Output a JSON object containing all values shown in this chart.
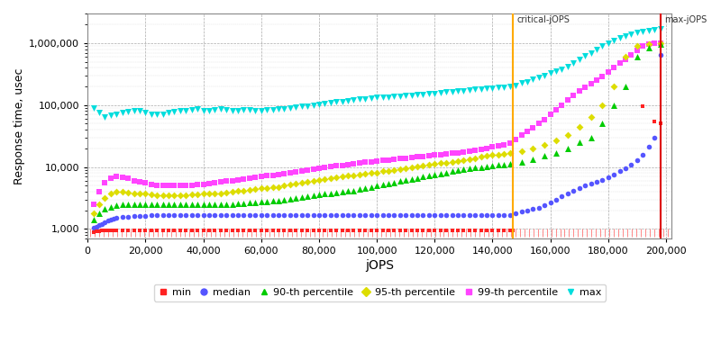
{
  "xlabel": "jOPS",
  "ylabel": "Response time, usec",
  "xlim": [
    0,
    202000
  ],
  "ylim_low": 700,
  "ylim_high": 3000000,
  "critical_jops": 147000,
  "max_jops": 198000,
  "critical_label": "critical-jOPS",
  "max_label": "max-jOPS",
  "series": {
    "min": {
      "color": "#ff2222",
      "marker": "s",
      "markersize": 3,
      "label": "min",
      "x": [
        2000,
        3000,
        4000,
        5000,
        6000,
        7000,
        8000,
        9000,
        10000,
        12000,
        14000,
        16000,
        18000,
        20000,
        22000,
        24000,
        26000,
        28000,
        30000,
        32000,
        34000,
        36000,
        38000,
        40000,
        42000,
        44000,
        46000,
        48000,
        50000,
        52000,
        54000,
        56000,
        58000,
        60000,
        62000,
        64000,
        66000,
        68000,
        70000,
        72000,
        74000,
        76000,
        78000,
        80000,
        82000,
        84000,
        86000,
        88000,
        90000,
        92000,
        94000,
        96000,
        98000,
        100000,
        102000,
        104000,
        106000,
        108000,
        110000,
        112000,
        114000,
        116000,
        118000,
        120000,
        122000,
        124000,
        126000,
        128000,
        130000,
        132000,
        134000,
        136000,
        138000,
        140000,
        142000,
        144000,
        146000,
        147000,
        192000,
        196000,
        198000
      ],
      "y": [
        900,
        920,
        930,
        940,
        950,
        960,
        960,
        960,
        960,
        960,
        960,
        960,
        960,
        960,
        960,
        960,
        960,
        960,
        960,
        960,
        960,
        960,
        960,
        960,
        960,
        960,
        960,
        960,
        960,
        960,
        960,
        960,
        960,
        960,
        960,
        960,
        960,
        960,
        960,
        960,
        960,
        960,
        960,
        960,
        960,
        960,
        960,
        960,
        960,
        960,
        960,
        960,
        960,
        960,
        960,
        960,
        960,
        960,
        960,
        960,
        960,
        960,
        960,
        960,
        960,
        960,
        960,
        960,
        960,
        960,
        960,
        960,
        960,
        960,
        960,
        960,
        960,
        960,
        95000,
        55000,
        50000
      ]
    },
    "median": {
      "color": "#5555ff",
      "marker": "o",
      "markersize": 4,
      "label": "median",
      "x": [
        2000,
        3000,
        4000,
        5000,
        6000,
        7000,
        8000,
        9000,
        10000,
        12000,
        14000,
        16000,
        18000,
        20000,
        22000,
        24000,
        26000,
        28000,
        30000,
        32000,
        34000,
        36000,
        38000,
        40000,
        42000,
        44000,
        46000,
        48000,
        50000,
        52000,
        54000,
        56000,
        58000,
        60000,
        62000,
        64000,
        66000,
        68000,
        70000,
        72000,
        74000,
        76000,
        78000,
        80000,
        82000,
        84000,
        86000,
        88000,
        90000,
        92000,
        94000,
        96000,
        98000,
        100000,
        102000,
        104000,
        106000,
        108000,
        110000,
        112000,
        114000,
        116000,
        118000,
        120000,
        122000,
        124000,
        126000,
        128000,
        130000,
        132000,
        134000,
        136000,
        138000,
        140000,
        142000,
        144000,
        146000,
        148000,
        150000,
        152000,
        154000,
        156000,
        158000,
        160000,
        162000,
        164000,
        166000,
        168000,
        170000,
        172000,
        174000,
        176000,
        178000,
        180000,
        182000,
        184000,
        186000,
        188000,
        190000,
        192000,
        194000,
        196000,
        198000
      ],
      "y": [
        1050,
        1100,
        1150,
        1200,
        1300,
        1350,
        1400,
        1450,
        1500,
        1550,
        1580,
        1600,
        1620,
        1640,
        1650,
        1660,
        1660,
        1660,
        1660,
        1660,
        1660,
        1660,
        1660,
        1660,
        1660,
        1660,
        1660,
        1660,
        1660,
        1660,
        1660,
        1660,
        1660,
        1660,
        1660,
        1660,
        1660,
        1660,
        1660,
        1660,
        1660,
        1660,
        1660,
        1660,
        1660,
        1660,
        1660,
        1660,
        1660,
        1660,
        1660,
        1660,
        1660,
        1660,
        1660,
        1660,
        1660,
        1660,
        1660,
        1660,
        1660,
        1660,
        1660,
        1660,
        1660,
        1660,
        1660,
        1660,
        1660,
        1660,
        1660,
        1660,
        1660,
        1660,
        1660,
        1660,
        1700,
        1800,
        1900,
        2000,
        2100,
        2200,
        2400,
        2700,
        3000,
        3400,
        3800,
        4200,
        4600,
        5000,
        5400,
        5800,
        6200,
        6800,
        7500,
        8500,
        9500,
        11000,
        13000,
        16000,
        21000,
        30000,
        650000
      ]
    },
    "p90": {
      "color": "#00cc00",
      "marker": "^",
      "markersize": 5,
      "label": "90-th percentile",
      "x": [
        2000,
        4000,
        6000,
        8000,
        10000,
        12000,
        14000,
        16000,
        18000,
        20000,
        22000,
        24000,
        26000,
        28000,
        30000,
        32000,
        34000,
        36000,
        38000,
        40000,
        42000,
        44000,
        46000,
        48000,
        50000,
        52000,
        54000,
        56000,
        58000,
        60000,
        62000,
        64000,
        66000,
        68000,
        70000,
        72000,
        74000,
        76000,
        78000,
        80000,
        82000,
        84000,
        86000,
        88000,
        90000,
        92000,
        94000,
        96000,
        98000,
        100000,
        102000,
        104000,
        106000,
        108000,
        110000,
        112000,
        114000,
        116000,
        118000,
        120000,
        122000,
        124000,
        126000,
        128000,
        130000,
        132000,
        134000,
        136000,
        138000,
        140000,
        142000,
        144000,
        146000,
        150000,
        154000,
        158000,
        162000,
        166000,
        170000,
        174000,
        178000,
        182000,
        186000,
        190000,
        194000,
        198000
      ],
      "y": [
        1400,
        1800,
        2100,
        2300,
        2400,
        2500,
        2500,
        2500,
        2500,
        2500,
        2500,
        2500,
        2500,
        2500,
        2500,
        2500,
        2500,
        2500,
        2500,
        2500,
        2500,
        2500,
        2500,
        2500,
        2500,
        2600,
        2600,
        2700,
        2700,
        2800,
        2800,
        2900,
        2900,
        3000,
        3100,
        3200,
        3300,
        3400,
        3500,
        3600,
        3700,
        3800,
        3900,
        4000,
        4100,
        4200,
        4400,
        4500,
        4700,
        5000,
        5200,
        5400,
        5600,
        5900,
        6100,
        6400,
        6700,
        7000,
        7300,
        7600,
        7900,
        8200,
        8500,
        8800,
        9200,
        9500,
        9800,
        10000,
        10200,
        10500,
        10800,
        11000,
        11200,
        12000,
        13500,
        15000,
        17000,
        20000,
        25000,
        30000,
        50000,
        100000,
        200000,
        600000,
        850000,
        950000
      ]
    },
    "p95": {
      "color": "#dddd00",
      "marker": "D",
      "markersize": 4,
      "label": "95-th percentile",
      "x": [
        2000,
        4000,
        6000,
        8000,
        10000,
        12000,
        14000,
        16000,
        18000,
        20000,
        22000,
        24000,
        26000,
        28000,
        30000,
        32000,
        34000,
        36000,
        38000,
        40000,
        42000,
        44000,
        46000,
        48000,
        50000,
        52000,
        54000,
        56000,
        58000,
        60000,
        62000,
        64000,
        66000,
        68000,
        70000,
        72000,
        74000,
        76000,
        78000,
        80000,
        82000,
        84000,
        86000,
        88000,
        90000,
        92000,
        94000,
        96000,
        98000,
        100000,
        102000,
        104000,
        106000,
        108000,
        110000,
        112000,
        114000,
        116000,
        118000,
        120000,
        122000,
        124000,
        126000,
        128000,
        130000,
        132000,
        134000,
        136000,
        138000,
        140000,
        142000,
        144000,
        146000,
        150000,
        154000,
        158000,
        162000,
        166000,
        170000,
        174000,
        178000,
        182000,
        186000,
        190000,
        194000,
        198000
      ],
      "y": [
        1800,
        2500,
        3200,
        3800,
        4000,
        4000,
        3900,
        3800,
        3700,
        3700,
        3600,
        3500,
        3500,
        3500,
        3500,
        3500,
        3500,
        3600,
        3600,
        3700,
        3700,
        3800,
        3800,
        3900,
        4000,
        4100,
        4200,
        4300,
        4400,
        4500,
        4600,
        4700,
        4800,
        5000,
        5200,
        5400,
        5600,
        5800,
        6000,
        6200,
        6400,
        6600,
        6800,
        7000,
        7200,
        7400,
        7600,
        7800,
        8000,
        8200,
        8500,
        8700,
        9000,
        9300,
        9600,
        9900,
        10200,
        10500,
        10800,
        11200,
        11500,
        11800,
        12200,
        12600,
        13000,
        13500,
        14000,
        14500,
        15000,
        15500,
        16000,
        16500,
        17000,
        18000,
        20000,
        23000,
        27000,
        33000,
        45000,
        65000,
        100000,
        200000,
        600000,
        900000,
        970000,
        1000000
      ]
    },
    "p99": {
      "color": "#ff44ff",
      "marker": "s",
      "markersize": 4,
      "label": "99-th percentile",
      "x": [
        2000,
        4000,
        6000,
        8000,
        10000,
        12000,
        14000,
        16000,
        18000,
        20000,
        22000,
        24000,
        26000,
        28000,
        30000,
        32000,
        34000,
        36000,
        38000,
        40000,
        42000,
        44000,
        46000,
        48000,
        50000,
        52000,
        54000,
        56000,
        58000,
        60000,
        62000,
        64000,
        66000,
        68000,
        70000,
        72000,
        74000,
        76000,
        78000,
        80000,
        82000,
        84000,
        86000,
        88000,
        90000,
        92000,
        94000,
        96000,
        98000,
        100000,
        102000,
        104000,
        106000,
        108000,
        110000,
        112000,
        114000,
        116000,
        118000,
        120000,
        122000,
        124000,
        126000,
        128000,
        130000,
        132000,
        134000,
        136000,
        138000,
        140000,
        142000,
        144000,
        146000,
        148000,
        150000,
        152000,
        154000,
        156000,
        158000,
        160000,
        162000,
        164000,
        166000,
        168000,
        170000,
        172000,
        174000,
        176000,
        178000,
        180000,
        182000,
        184000,
        186000,
        188000,
        190000,
        192000,
        194000,
        196000,
        198000
      ],
      "y": [
        2500,
        4000,
        5500,
        6500,
        7000,
        6800,
        6500,
        6000,
        5800,
        5500,
        5300,
        5100,
        5000,
        5000,
        5000,
        5000,
        5000,
        5100,
        5200,
        5300,
        5400,
        5500,
        5700,
        5900,
        6000,
        6200,
        6400,
        6600,
        6800,
        7000,
        7200,
        7400,
        7600,
        7800,
        8000,
        8300,
        8600,
        8900,
        9200,
        9500,
        9800,
        10100,
        10400,
        10700,
        11000,
        11300,
        11600,
        11900,
        12200,
        12500,
        12800,
        13100,
        13400,
        13700,
        14000,
        14300,
        14600,
        14900,
        15200,
        15500,
        15800,
        16200,
        16600,
        17000,
        17500,
        18000,
        18500,
        19000,
        20000,
        21000,
        22000,
        23000,
        24000,
        28000,
        33000,
        38000,
        43000,
        50000,
        58000,
        70000,
        85000,
        100000,
        120000,
        145000,
        170000,
        195000,
        220000,
        250000,
        290000,
        340000,
        400000,
        470000,
        550000,
        650000,
        770000,
        900000,
        970000,
        990000,
        1000000
      ]
    },
    "max": {
      "color": "#00dddd",
      "marker": "v",
      "markersize": 5,
      "label": "max",
      "x": [
        2000,
        4000,
        6000,
        8000,
        10000,
        12000,
        14000,
        16000,
        18000,
        20000,
        22000,
        24000,
        26000,
        28000,
        30000,
        32000,
        34000,
        36000,
        38000,
        40000,
        42000,
        44000,
        46000,
        48000,
        50000,
        52000,
        54000,
        56000,
        58000,
        60000,
        62000,
        64000,
        66000,
        68000,
        70000,
        72000,
        74000,
        76000,
        78000,
        80000,
        82000,
        84000,
        86000,
        88000,
        90000,
        92000,
        94000,
        96000,
        98000,
        100000,
        102000,
        104000,
        106000,
        108000,
        110000,
        112000,
        114000,
        116000,
        118000,
        120000,
        122000,
        124000,
        126000,
        128000,
        130000,
        132000,
        134000,
        136000,
        138000,
        140000,
        142000,
        144000,
        146000,
        148000,
        150000,
        152000,
        154000,
        156000,
        158000,
        160000,
        162000,
        164000,
        166000,
        168000,
        170000,
        172000,
        174000,
        176000,
        178000,
        180000,
        182000,
        184000,
        186000,
        188000,
        190000,
        192000,
        194000,
        196000,
        198000
      ],
      "y": [
        90000,
        75000,
        65000,
        68000,
        72000,
        75000,
        78000,
        80000,
        82000,
        75000,
        72000,
        70000,
        72000,
        75000,
        78000,
        80000,
        82000,
        85000,
        88000,
        80000,
        82000,
        84000,
        86000,
        85000,
        80000,
        82000,
        84000,
        85000,
        82000,
        82000,
        84000,
        85000,
        86000,
        88000,
        90000,
        92000,
        95000,
        97000,
        100000,
        102000,
        105000,
        108000,
        112000,
        115000,
        118000,
        121000,
        124000,
        127000,
        130000,
        132000,
        134000,
        136000,
        138000,
        140000,
        142000,
        144000,
        146000,
        149000,
        152000,
        155000,
        158000,
        162000,
        165000,
        168000,
        172000,
        175000,
        178000,
        182000,
        185000,
        188000,
        192000,
        196000,
        200000,
        210000,
        225000,
        240000,
        260000,
        280000,
        300000,
        325000,
        350000,
        380000,
        420000,
        470000,
        540000,
        620000,
        700000,
        800000,
        900000,
        1000000,
        1100000,
        1200000,
        1300000,
        1400000,
        1500000,
        1550000,
        1600000,
        1650000,
        1700000
      ]
    }
  }
}
